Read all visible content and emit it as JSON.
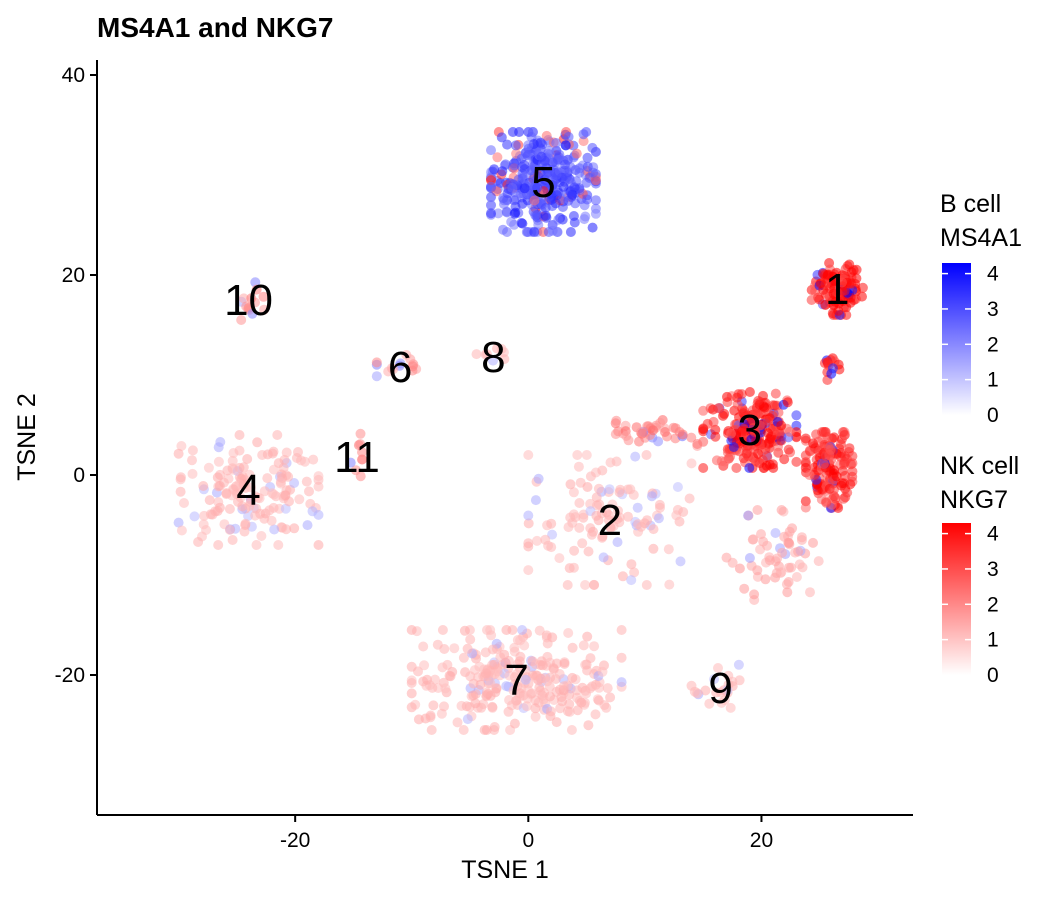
{
  "chart_data": {
    "type": "scatter",
    "title": "MS4A1 and NKG7",
    "xlabel": "TSNE 1",
    "ylabel": "TSNE 2",
    "xlim": [
      -37,
      33
    ],
    "ylim": [
      -34,
      41.5
    ],
    "xticks": [
      -20,
      0,
      20
    ],
    "yticks": [
      -20,
      0,
      20,
      40
    ],
    "grid": false,
    "legend_position": "right",
    "legends": [
      {
        "title_lines": [
          "B cell",
          "MS4A1"
        ],
        "color_low": "#ffffff",
        "color_high": "#0000ff",
        "ticks": [
          0,
          1,
          2,
          3,
          4
        ],
        "range": [
          0,
          4.3
        ]
      },
      {
        "title_lines": [
          "NK cell",
          "NKG7"
        ],
        "color_low": "#ffffff",
        "color_high": "#ff0000",
        "ticks": [
          0,
          1,
          2,
          3,
          4
        ],
        "range": [
          0,
          4.3
        ]
      }
    ],
    "clusters": [
      {
        "label": "1",
        "x": 26.5,
        "y": 18.6,
        "spread": [
          2.2,
          2.6
        ],
        "n": 110,
        "marker": "NKG7",
        "level": 4.0
      },
      {
        "label": "2",
        "x": 7,
        "y": -4.5,
        "spread": [
          7.0,
          6.5
        ],
        "n": 120,
        "marker": "NKG7",
        "level": 0.6
      },
      {
        "label": "3",
        "x": 19,
        "y": 4.5,
        "spread": [
          4.0,
          3.8
        ],
        "n": 230,
        "marker": "NKG7",
        "level": 3.5
      },
      {
        "label": "4",
        "x": -24,
        "y": -1.5,
        "spread": [
          6.0,
          5.5
        ],
        "n": 160,
        "marker": "NKG7",
        "level": 0.6
      },
      {
        "label": "5",
        "x": 1.3,
        "y": 29.3,
        "spread": [
          4.5,
          5.0
        ],
        "n": 360,
        "marker": "MS4A1",
        "level": 2.7
      },
      {
        "label": "6",
        "x": -11,
        "y": 10.8,
        "spread": [
          2.0,
          1.2
        ],
        "n": 14,
        "marker": "NKG7",
        "level": 1.2
      },
      {
        "label": "7",
        "x": -1,
        "y": -20.5,
        "spread": [
          9.0,
          5.0
        ],
        "n": 280,
        "marker": "NKG7",
        "level": 0.6
      },
      {
        "label": "8",
        "x": -3,
        "y": 11.8,
        "spread": [
          2.0,
          1.2
        ],
        "n": 8,
        "marker": "NKG7",
        "level": 0.6
      },
      {
        "label": "9",
        "x": 16.5,
        "y": -21.3,
        "spread": [
          2.5,
          3.0
        ],
        "n": 22,
        "marker": "NKG7",
        "level": 0.6
      },
      {
        "label": "10",
        "x": -24,
        "y": 17.5,
        "spread": [
          1.6,
          2.0
        ],
        "n": 14,
        "marker": "NKG7",
        "level": 1.3
      },
      {
        "label": "11",
        "x": -14.7,
        "y": 1.8,
        "spread": [
          1.0,
          2.5
        ],
        "n": 8,
        "marker": "NKG7",
        "level": 2.2
      },
      {
        "label": "",
        "x": 25.8,
        "y": 0.5,
        "spread": [
          2.0,
          3.8
        ],
        "n": 150,
        "marker": "NKG7",
        "level": 3.4
      },
      {
        "label": "",
        "x": 26,
        "y": 11,
        "spread": [
          0.8,
          1.5
        ],
        "n": 14,
        "marker": "NKG7",
        "level": 3.5
      },
      {
        "label": "",
        "x": 21,
        "y": -8,
        "spread": [
          4.0,
          4.5
        ],
        "n": 60,
        "marker": "NKG7",
        "level": 0.9
      },
      {
        "label": "",
        "x": 11,
        "y": 4.2,
        "spread": [
          3.5,
          1.3
        ],
        "n": 40,
        "marker": "NKG7",
        "level": 1.6
      }
    ]
  }
}
